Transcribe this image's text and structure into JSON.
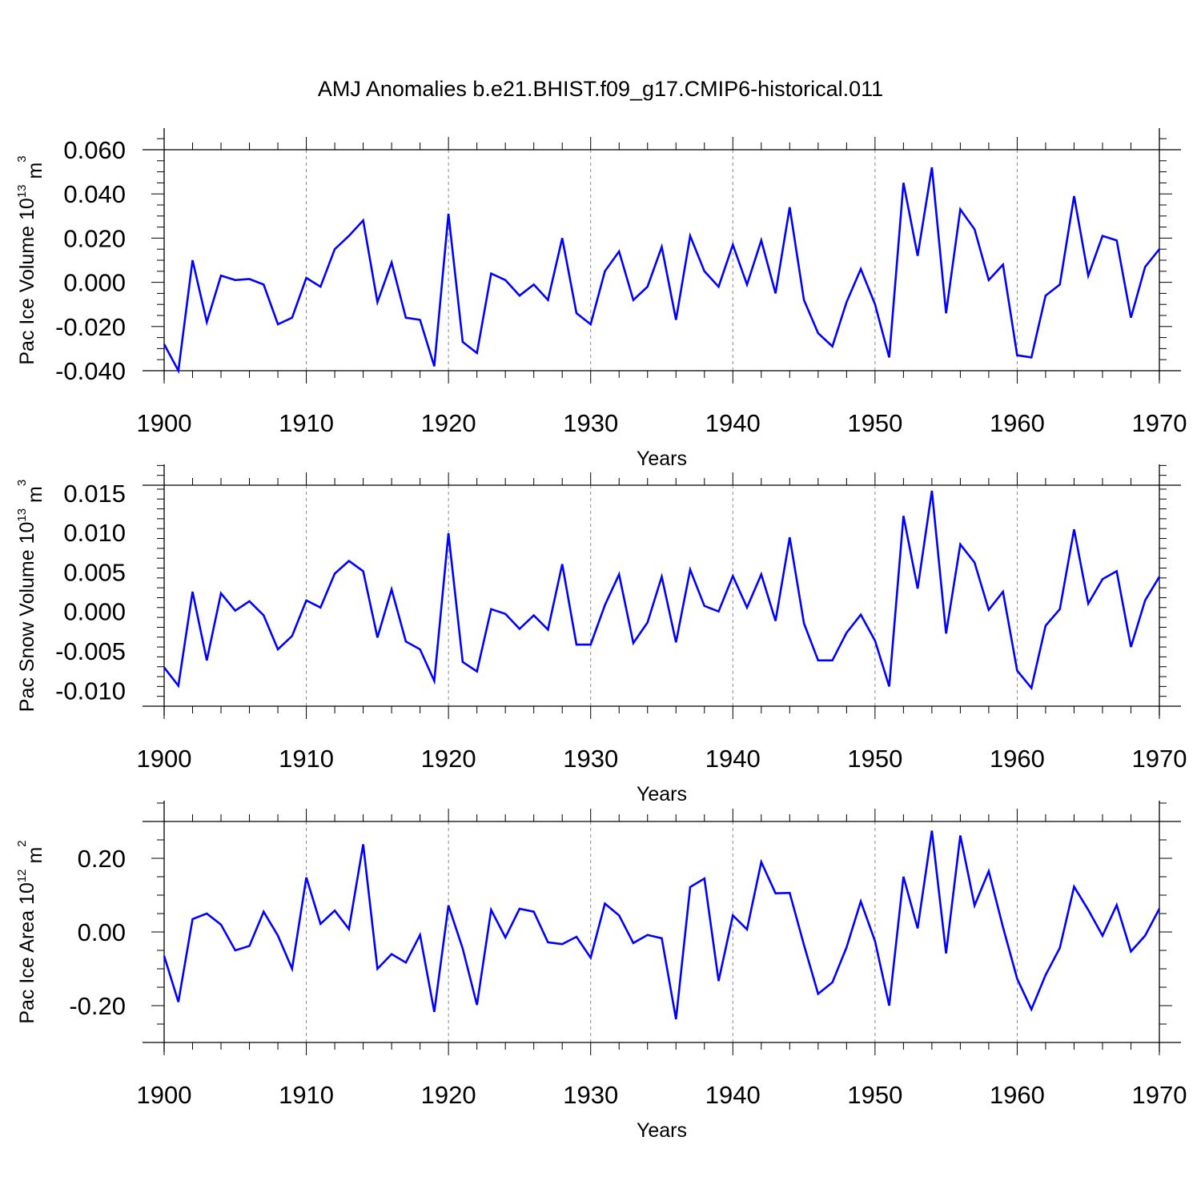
{
  "figure": {
    "title": "AMJ Anomalies b.e21.BHIST.f09_g17.CMIP6-historical.011",
    "line_color": "#0000ff"
  },
  "chart_data": [
    {
      "type": "line",
      "title": "AMJ Anomalies b.e21.BHIST.f09_g17.CMIP6-historical.011",
      "xlabel": "Years",
      "ylabel": "Pac Ice Volume 10",
      "ylabel_exp": "13",
      "ylabel_unit": " m",
      "ylabel_unit_exp": "3",
      "xlim": [
        1900,
        1970
      ],
      "ylim": [
        -0.04,
        0.06
      ],
      "xticks": [
        1900,
        1910,
        1920,
        1930,
        1940,
        1950,
        1960,
        1970
      ],
      "xtick_labels": [
        "1900",
        "1910",
        "1920",
        "1930",
        "1940",
        "1950",
        "1960",
        "1970"
      ],
      "yticks": [
        -0.04,
        -0.02,
        0.0,
        0.02,
        0.04,
        0.06
      ],
      "ytick_labels": [
        "-0.040",
        "-0.020",
        "0.000",
        "0.020",
        "0.040",
        "0.060"
      ],
      "vgrid": [
        1910,
        1920,
        1930,
        1940,
        1950,
        1960
      ],
      "x": [
        1900,
        1901,
        1902,
        1903,
        1904,
        1905,
        1906,
        1907,
        1908,
        1909,
        1910,
        1911,
        1912,
        1913,
        1914,
        1915,
        1916,
        1917,
        1918,
        1919,
        1920,
        1921,
        1922,
        1923,
        1924,
        1925,
        1926,
        1927,
        1928,
        1929,
        1930,
        1931,
        1932,
        1933,
        1934,
        1935,
        1936,
        1937,
        1938,
        1939,
        1940,
        1941,
        1942,
        1943,
        1944,
        1945,
        1946,
        1947,
        1948,
        1949,
        1950,
        1951,
        1952,
        1953,
        1954,
        1955,
        1956,
        1957,
        1958,
        1959,
        1960,
        1961,
        1962,
        1963,
        1964,
        1965,
        1966,
        1967,
        1968,
        1969,
        1970
      ],
      "series": [
        {
          "name": "Pac Ice Volume",
          "values": [
            -0.028,
            -0.04,
            0.01,
            -0.018,
            0.003,
            0.001,
            0.0015,
            -0.001,
            -0.019,
            -0.016,
            0.002,
            -0.002,
            0.015,
            0.021,
            0.028,
            -0.009,
            0.009,
            -0.016,
            -0.017,
            -0.038,
            0.031,
            -0.027,
            -0.032,
            0.004,
            0.001,
            -0.006,
            -0.001,
            -0.008,
            0.02,
            -0.014,
            -0.019,
            0.005,
            0.014,
            -0.008,
            -0.002,
            0.016,
            -0.017,
            0.021,
            0.005,
            -0.002,
            0.017,
            -0.001,
            0.019,
            -0.005,
            0.034,
            -0.008,
            -0.023,
            -0.029,
            -0.009,
            0.006,
            -0.01,
            -0.034,
            0.045,
            0.012,
            0.052,
            -0.014,
            0.033,
            0.024,
            0.001,
            0.008,
            -0.033,
            -0.034,
            -0.006,
            -0.001,
            0.039,
            0.003,
            0.021,
            0.019,
            -0.016,
            0.007,
            0.015
          ]
        }
      ]
    },
    {
      "type": "line",
      "xlabel": "Years",
      "ylabel": "Pac Snow Volume 10",
      "ylabel_exp": "13",
      "ylabel_unit": " m",
      "ylabel_unit_exp": "3",
      "xlim": [
        1900,
        1970
      ],
      "ylim": [
        -0.012,
        0.016
      ],
      "xticks": [
        1900,
        1910,
        1920,
        1930,
        1940,
        1950,
        1960,
        1970
      ],
      "xtick_labels": [
        "1900",
        "1910",
        "1920",
        "1930",
        "1940",
        "1950",
        "1960",
        "1970"
      ],
      "yticks": [
        -0.01,
        -0.005,
        0.0,
        0.005,
        0.01,
        0.015
      ],
      "ytick_labels": [
        "-0.010",
        "-0.005",
        "0.000",
        "0.005",
        "0.010",
        "0.015"
      ],
      "vgrid": [
        1910,
        1920,
        1930,
        1940,
        1950,
        1960
      ],
      "x": [
        1900,
        1901,
        1902,
        1903,
        1904,
        1905,
        1906,
        1907,
        1908,
        1909,
        1910,
        1911,
        1912,
        1913,
        1914,
        1915,
        1916,
        1917,
        1918,
        1919,
        1920,
        1921,
        1922,
        1923,
        1924,
        1925,
        1926,
        1927,
        1928,
        1929,
        1930,
        1931,
        1932,
        1933,
        1934,
        1935,
        1936,
        1937,
        1938,
        1939,
        1940,
        1941,
        1942,
        1943,
        1944,
        1945,
        1946,
        1947,
        1948,
        1949,
        1950,
        1951,
        1952,
        1953,
        1954,
        1955,
        1956,
        1957,
        1958,
        1959,
        1960,
        1961,
        1962,
        1963,
        1964,
        1965,
        1966,
        1967,
        1968,
        1969,
        1970
      ],
      "series": [
        {
          "name": "Pac Snow Volume",
          "values": [
            -0.0071,
            -0.0094,
            0.0025,
            -0.0062,
            0.0023,
            0.0001,
            0.0013,
            -0.0005,
            -0.0048,
            -0.0031,
            0.0014,
            0.0005,
            0.0048,
            0.0064,
            0.0051,
            -0.0033,
            0.0028,
            -0.0038,
            -0.0048,
            -0.0088,
            0.0099,
            -0.0064,
            -0.0076,
            0.0003,
            -0.0003,
            -0.0022,
            -0.0005,
            -0.0023,
            0.006,
            -0.0042,
            -0.0042,
            0.0008,
            0.0047,
            -0.004,
            -0.0014,
            0.0044,
            -0.0039,
            0.0053,
            0.0007,
            0.0,
            0.0045,
            0.0005,
            0.0047,
            -0.0012,
            0.0094,
            -0.0015,
            -0.0062,
            -0.0062,
            -0.0027,
            -0.0004,
            -0.0037,
            -0.0095,
            0.0121,
            0.0029,
            0.0153,
            -0.0028,
            0.0085,
            0.0062,
            0.0002,
            0.0025,
            -0.0075,
            -0.0097,
            -0.0018,
            0.0003,
            0.0104,
            0.001,
            0.0041,
            0.0051,
            -0.0045,
            0.0014,
            0.0044
          ]
        }
      ]
    },
    {
      "type": "line",
      "xlabel": "Years",
      "ylabel": "Pac Ice Area 10",
      "ylabel_exp": "12",
      "ylabel_unit": " m",
      "ylabel_unit_exp": "2",
      "xlim": [
        1900,
        1970
      ],
      "ylim": [
        -0.3,
        0.3
      ],
      "xticks": [
        1900,
        1910,
        1920,
        1930,
        1940,
        1950,
        1960,
        1970
      ],
      "xtick_labels": [
        "1900",
        "1910",
        "1920",
        "1930",
        "1940",
        "1950",
        "1960",
        "1970"
      ],
      "yticks": [
        -0.2,
        0.0,
        0.2
      ],
      "ytick_labels": [
        "-0.20",
        "0.00",
        "0.20"
      ],
      "vgrid": [
        1910,
        1920,
        1930,
        1940,
        1950,
        1960
      ],
      "x": [
        1900,
        1901,
        1902,
        1903,
        1904,
        1905,
        1906,
        1907,
        1908,
        1909,
        1910,
        1911,
        1912,
        1913,
        1914,
        1915,
        1916,
        1917,
        1918,
        1919,
        1920,
        1921,
        1922,
        1923,
        1924,
        1925,
        1926,
        1927,
        1928,
        1929,
        1930,
        1931,
        1932,
        1933,
        1934,
        1935,
        1936,
        1937,
        1938,
        1939,
        1940,
        1941,
        1942,
        1943,
        1944,
        1945,
        1946,
        1947,
        1948,
        1949,
        1950,
        1951,
        1952,
        1953,
        1954,
        1955,
        1956,
        1957,
        1958,
        1959,
        1960,
        1961,
        1962,
        1963,
        1964,
        1965,
        1966,
        1967,
        1968,
        1969,
        1970
      ],
      "series": [
        {
          "name": "Pac Ice Area",
          "values": [
            -0.065,
            -0.19,
            0.035,
            0.05,
            0.02,
            -0.05,
            -0.038,
            0.055,
            -0.01,
            -0.1,
            0.148,
            0.022,
            0.058,
            0.008,
            0.238,
            -0.1,
            -0.06,
            -0.083,
            -0.008,
            -0.217,
            0.072,
            -0.045,
            -0.198,
            0.06,
            -0.015,
            0.063,
            0.055,
            -0.028,
            -0.033,
            -0.013,
            -0.07,
            0.077,
            0.045,
            -0.03,
            -0.008,
            -0.017,
            -0.237,
            0.122,
            0.145,
            -0.133,
            0.045,
            0.007,
            0.19,
            0.105,
            0.106,
            -0.035,
            -0.168,
            -0.137,
            -0.042,
            0.083,
            -0.025,
            -0.2,
            0.15,
            0.01,
            0.275,
            -0.058,
            0.262,
            0.072,
            0.165,
            0.013,
            -0.127,
            -0.21,
            -0.117,
            -0.043,
            0.123,
            0.06,
            -0.01,
            0.073,
            -0.053,
            -0.01,
            0.063
          ]
        }
      ]
    }
  ]
}
